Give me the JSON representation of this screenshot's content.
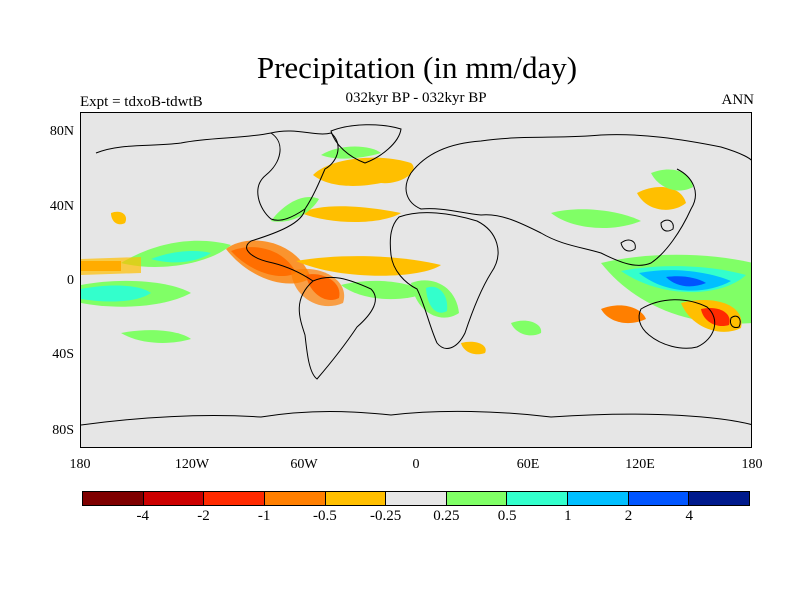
{
  "title": "Precipitation (in mm/day)",
  "subtitle": "032kyr BP - 032kyr BP",
  "left_label": "Expt = tdxoB-tdwtB",
  "right_label": "ANN",
  "map": {
    "background_color": "#e6e6e6",
    "lat_labels": [
      "80N",
      "40N",
      "0",
      "40S",
      "80S"
    ],
    "lon_labels": [
      "180",
      "120W",
      "60W",
      "0",
      "60E",
      "120E",
      "180"
    ]
  },
  "colorbar": {
    "colors": [
      "#7f0000",
      "#cc0000",
      "#ff2a00",
      "#ff7f00",
      "#ffbf00",
      "#e6e6e6",
      "#80ff66",
      "#33ffcc",
      "#00bfff",
      "#0055ff",
      "#001a8c"
    ],
    "labels": [
      "-4",
      "-2",
      "-1",
      "-0.5",
      "-0.25",
      "0.25",
      "0.5",
      "1",
      "2",
      "4"
    ]
  }
}
